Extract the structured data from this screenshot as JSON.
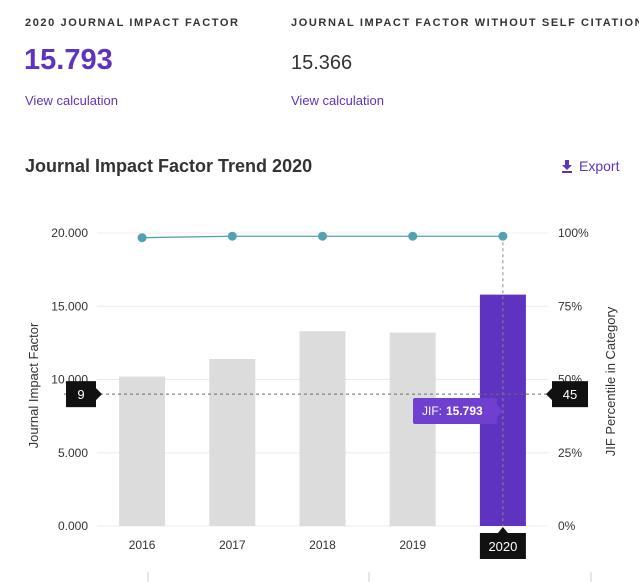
{
  "metrics": {
    "jif": {
      "label": "2020 JOURNAL IMPACT FACTOR",
      "value": "15.793",
      "link": "View calculation"
    },
    "jif_no_self": {
      "label": "JOURNAL IMPACT FACTOR WITHOUT SELF CITATIONS",
      "value": "15.366",
      "link": "View calculation"
    }
  },
  "chart_header": {
    "title": "Journal Impact Factor Trend 2020",
    "export_label": "Export",
    "export_icon": "download-icon"
  },
  "colors": {
    "accent": "#5e33bf",
    "bar": "#dcdcdc",
    "line": "#52a3b1",
    "tooltip": "#6f3fcf",
    "marker": "#111111"
  },
  "chart_data": {
    "type": "bar",
    "title": "Journal Impact Factor Trend 2020",
    "categories": [
      "2016",
      "2017",
      "2018",
      "2019",
      "2020"
    ],
    "series": [
      {
        "name": "Journal Impact Factor",
        "type": "bar",
        "axis": "left",
        "values": [
          10.2,
          11.4,
          13.3,
          13.2,
          15.793
        ]
      },
      {
        "name": "JIF Percentile in Category",
        "type": "line",
        "axis": "right",
        "values": [
          98.4,
          98.9,
          98.9,
          98.9,
          98.9
        ]
      }
    ],
    "ylabel": "Journal Impact Factor",
    "ylabel_right": "JIF Percentile in Category",
    "ylim": [
      0,
      20
    ],
    "ylim_right": [
      0,
      100
    ],
    "y_ticks": [
      "0.000",
      "5.000",
      "10.000",
      "15.000",
      "20.000"
    ],
    "y_ticks_right": [
      "0%",
      "25%",
      "50%",
      "75%",
      "100%"
    ],
    "highlight_category": "2020",
    "tooltip": {
      "label": "JIF:",
      "value": "15.793"
    },
    "crosshair": {
      "left_label": "9",
      "right_label": "45",
      "y_value": 9
    },
    "grid": true
  }
}
